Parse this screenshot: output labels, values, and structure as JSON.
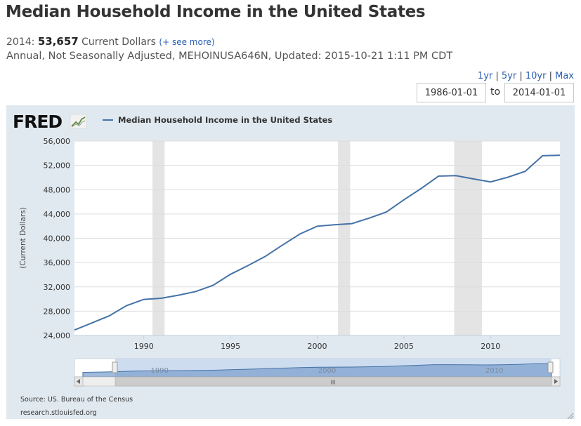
{
  "header": {
    "title": "Median Household Income in the United States",
    "latest_prefix": "2014:",
    "latest_value": "53,657",
    "units": "Current Dollars",
    "see_more": "(+ see more)",
    "meta": "Annual, Not Seasonally Adjusted, MEHOINUSA646N, Updated: 2015-10-21 1:11 PM CDT"
  },
  "range_links": [
    "1yr",
    "5yr",
    "10yr",
    "Max"
  ],
  "date_range": {
    "start": "1986-01-01",
    "to_label": "to",
    "end": "2014-01-01"
  },
  "branding": {
    "logo_text": "FRED"
  },
  "source": {
    "line1": "Source: US. Bureau of the Census",
    "line2": "research.stlouisfed.org"
  },
  "navigator": {
    "labels": [
      "1990",
      "2000",
      "2010"
    ],
    "scroll_grip": "III"
  },
  "colors": {
    "series": "#4572a7",
    "recession": "#e4e4e4",
    "panel": "#e1e9f0",
    "navigator": "#7fa3cf"
  },
  "chart_data": {
    "type": "line",
    "title": "",
    "xlabel": "",
    "ylabel": "(Current Dollars)",
    "legend": "top-left",
    "grid": true,
    "xlim": [
      1986,
      2014
    ],
    "ylim": [
      24000,
      56000
    ],
    "yticks": [
      24000,
      28000,
      32000,
      36000,
      40000,
      44000,
      48000,
      52000,
      56000
    ],
    "ytick_labels": [
      "24,000",
      "28,000",
      "32,000",
      "36,000",
      "40,000",
      "44,000",
      "48,000",
      "52,000",
      "56,000"
    ],
    "xticks": [
      1990,
      1995,
      2000,
      2005,
      2010
    ],
    "xtick_labels": [
      "1990",
      "1995",
      "2000",
      "2005",
      "2010"
    ],
    "recessions": [
      [
        1990.5,
        1991.2
      ],
      [
        2001.2,
        2001.9
      ],
      [
        2007.9,
        2009.5
      ]
    ],
    "series": [
      {
        "name": "Median Household Income in the United States",
        "x": [
          1986,
          1987,
          1988,
          1989,
          1990,
          1991,
          1992,
          1993,
          1994,
          1995,
          1996,
          1997,
          1998,
          1999,
          2000,
          2001,
          2002,
          2003,
          2004,
          2005,
          2006,
          2007,
          2008,
          2009,
          2010,
          2011,
          2012,
          2013,
          2014
        ],
        "values": [
          24897,
          26061,
          27225,
          28906,
          29943,
          30126,
          30636,
          31241,
          32264,
          34076,
          35492,
          37005,
          38885,
          40696,
          41990,
          42228,
          42409,
          43318,
          44334,
          46326,
          48201,
          50233,
          50303,
          49777,
          49276,
          50054,
          51017,
          53585,
          53657
        ]
      }
    ]
  }
}
